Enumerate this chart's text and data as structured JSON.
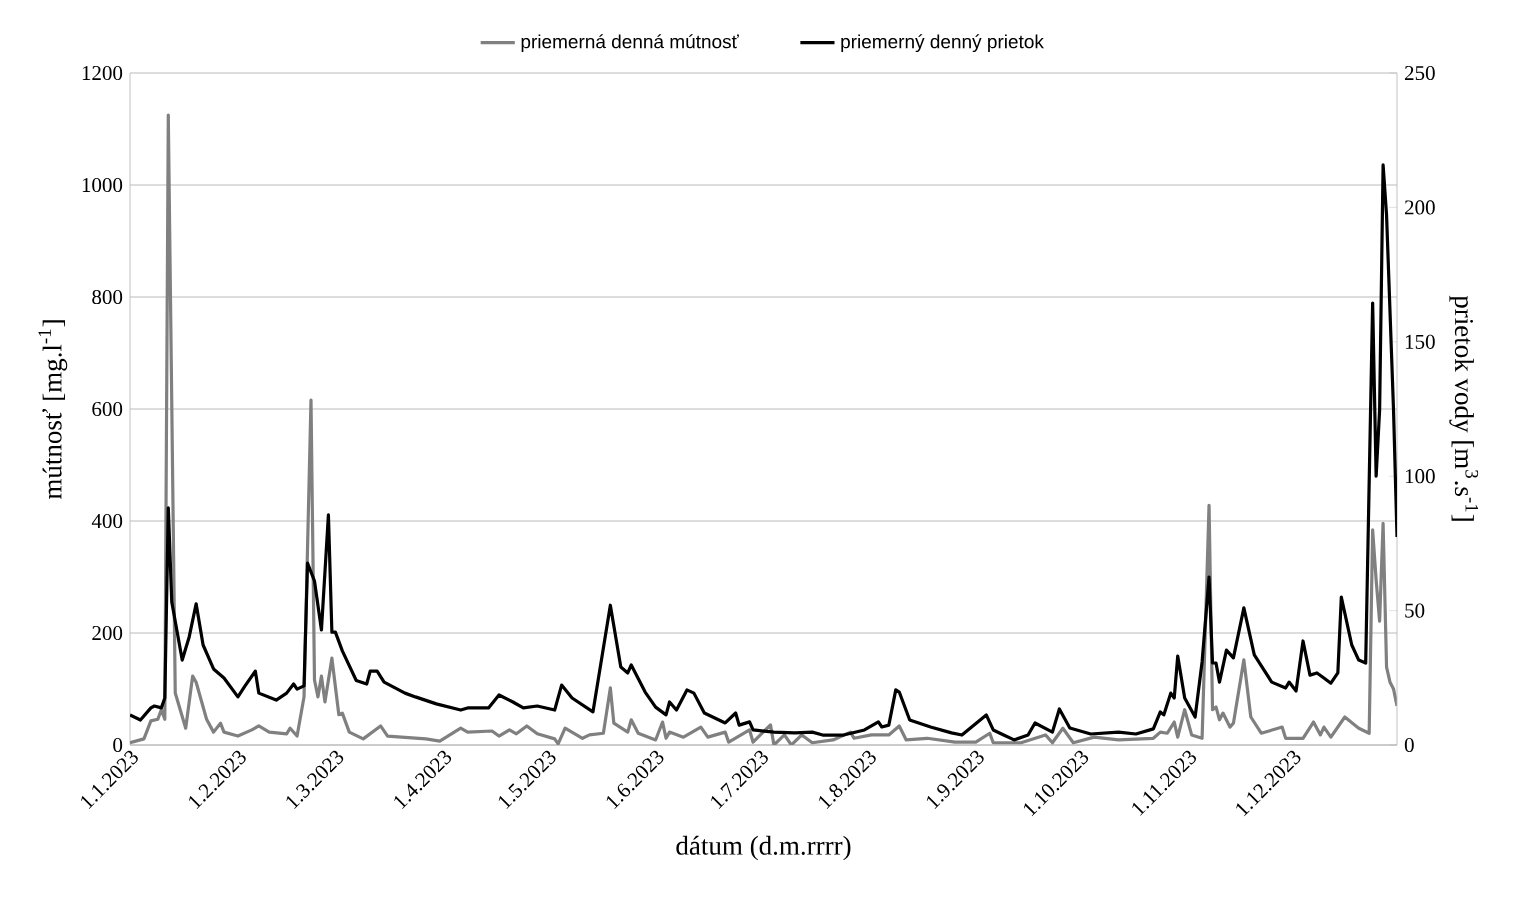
{
  "chart_data": {
    "type": "line",
    "xlabel": "dátum (d.m.rrrr)",
    "ylabel": "mútnosť [mg.l$^{-1}$]",
    "y2label": "prietok vody [m$^{3}$.s$^{-1}$]",
    "xlim": [
      "2023-01-01",
      "2023-12-31"
    ],
    "xticks": [
      {
        "value": "2023-01-01",
        "label": "1.1.2023"
      },
      {
        "value": "2023-02-01",
        "label": "1.2.2023"
      },
      {
        "value": "2023-03-01",
        "label": "1.3.2023"
      },
      {
        "value": "2023-04-01",
        "label": "1.4.2023"
      },
      {
        "value": "2023-05-01",
        "label": "1.5.2023"
      },
      {
        "value": "2023-06-01",
        "label": "1.6.2023"
      },
      {
        "value": "2023-07-01",
        "label": "1.7.2023"
      },
      {
        "value": "2023-08-01",
        "label": "1.8.2023"
      },
      {
        "value": "2023-09-01",
        "label": "1.9.2023"
      },
      {
        "value": "2023-10-01",
        "label": "1.10.2023"
      },
      {
        "value": "2023-11-01",
        "label": "1.11.2023"
      },
      {
        "value": "2023-12-01",
        "label": "1.12.2023"
      }
    ],
    "ylim": [
      0,
      1200
    ],
    "yticks": [
      0,
      200,
      400,
      600,
      800,
      1000,
      1200
    ],
    "y2lim": [
      0,
      250
    ],
    "y2ticks": [
      0,
      50,
      100,
      150,
      200,
      250
    ],
    "grid": "y",
    "legend": "top",
    "line_style": "solid",
    "series": [
      {
        "name": "priemerná denná mútnosť",
        "color": "#808080",
        "x": [
          "2023-01-01",
          "2023-01-05",
          "2023-01-07",
          "2023-01-09",
          "2023-01-10",
          "2023-01-11",
          "2023-01-12",
          "2023-01-14",
          "2023-01-17",
          "2023-01-19",
          "2023-01-20",
          "2023-01-23",
          "2023-01-25",
          "2023-01-27",
          "2023-01-28",
          "2023-02-01",
          "2023-02-05",
          "2023-02-07",
          "2023-02-10",
          "2023-02-15",
          "2023-02-16",
          "2023-02-18",
          "2023-02-20",
          "2023-02-22",
          "2023-02-23",
          "2023-02-24",
          "2023-02-25",
          "2023-02-26",
          "2023-02-28",
          "2023-03-02",
          "2023-03-03",
          "2023-03-05",
          "2023-03-09",
          "2023-03-14",
          "2023-03-16",
          "2023-03-27",
          "2023-03-31",
          "2023-04-06",
          "2023-04-08",
          "2023-04-15",
          "2023-04-17",
          "2023-04-20",
          "2023-04-22",
          "2023-04-25",
          "2023-04-28",
          "2023-05-03",
          "2023-05-04",
          "2023-05-06",
          "2023-05-11",
          "2023-05-13",
          "2023-05-17",
          "2023-05-19",
          "2023-05-20",
          "2023-05-24",
          "2023-05-25",
          "2023-05-27",
          "2023-06-01",
          "2023-06-03",
          "2023-06-04",
          "2023-06-05",
          "2023-06-09",
          "2023-06-14",
          "2023-06-16",
          "2023-06-21",
          "2023-06-22",
          "2023-06-28",
          "2023-06-29",
          "2023-07-04",
          "2023-07-05",
          "2023-07-08",
          "2023-07-10",
          "2023-07-13",
          "2023-07-16",
          "2023-07-22",
          "2023-07-27",
          "2023-07-28",
          "2023-08-02",
          "2023-08-07",
          "2023-08-10",
          "2023-08-12",
          "2023-08-18",
          "2023-08-26",
          "2023-09-01",
          "2023-09-05",
          "2023-09-06",
          "2023-09-14",
          "2023-09-21",
          "2023-09-23",
          "2023-09-26",
          "2023-09-29",
          "2023-10-05",
          "2023-10-12",
          "2023-10-22",
          "2023-10-24",
          "2023-10-26",
          "2023-10-28",
          "2023-10-29",
          "2023-10-31",
          "2023-11-02",
          "2023-11-05",
          "2023-11-07",
          "2023-11-08",
          "2023-11-09",
          "2023-11-10",
          "2023-11-11",
          "2023-11-13",
          "2023-11-14",
          "2023-11-17",
          "2023-11-19",
          "2023-11-22",
          "2023-11-28",
          "2023-11-29",
          "2023-12-04",
          "2023-12-07",
          "2023-12-09",
          "2023-12-10",
          "2023-12-12",
          "2023-12-16",
          "2023-12-20",
          "2023-12-23",
          "2023-12-24",
          "2023-12-25",
          "2023-12-26",
          "2023-12-27",
          "2023-12-28",
          "2023-12-29",
          "2023-12-30",
          "2023-12-31"
        ],
        "values": [
          4,
          11,
          43,
          46,
          63,
          46,
          1125,
          93,
          30,
          123,
          112,
          46,
          23,
          39,
          23,
          16,
          27,
          34,
          23,
          20,
          30,
          16,
          86,
          616,
          116,
          86,
          123,
          77,
          155,
          54,
          57,
          23,
          11,
          34,
          16,
          11,
          7,
          30,
          23,
          25,
          16,
          27,
          20,
          34,
          20,
          11,
          2,
          30,
          12,
          18,
          21,
          102,
          39,
          23,
          45,
          21,
          9,
          41,
          12,
          23,
          14,
          32,
          14,
          23,
          5,
          27,
          5,
          36,
          0,
          18,
          0,
          18,
          4,
          9,
          23,
          12,
          18,
          18,
          34,
          9,
          12,
          5,
          5,
          21,
          4,
          4,
          18,
          4,
          30,
          4,
          14,
          9,
          12,
          23,
          21,
          41,
          14,
          63,
          18,
          12,
          428,
          63,
          68,
          45,
          57,
          32,
          39,
          152,
          50,
          21,
          32,
          12,
          12,
          41,
          18,
          32,
          14,
          50,
          30,
          21,
          384,
          295,
          221,
          396,
          139,
          112,
          100,
          70
        ]
      },
      {
        "name": "priemerný denný prietok",
        "color": "#000000",
        "axis": "y2",
        "x": [
          "2023-01-01",
          "2023-01-04",
          "2023-01-07",
          "2023-01-08",
          "2023-01-10",
          "2023-01-11",
          "2023-01-12",
          "2023-01-13",
          "2023-01-16",
          "2023-01-18",
          "2023-01-20",
          "2023-01-22",
          "2023-01-25",
          "2023-01-28",
          "2023-02-01",
          "2023-02-03",
          "2023-02-06",
          "2023-02-07",
          "2023-02-12",
          "2023-02-15",
          "2023-02-17",
          "2023-02-18",
          "2023-02-20",
          "2023-02-21",
          "2023-02-23",
          "2023-02-25",
          "2023-02-27",
          "2023-02-28",
          "2023-03-01",
          "2023-03-03",
          "2023-03-07",
          "2023-03-10",
          "2023-03-11",
          "2023-03-13",
          "2023-03-15",
          "2023-03-21",
          "2023-03-24",
          "2023-03-30",
          "2023-04-06",
          "2023-04-08",
          "2023-04-14",
          "2023-04-17",
          "2023-04-21",
          "2023-04-24",
          "2023-04-28",
          "2023-05-03",
          "2023-05-05",
          "2023-05-08",
          "2023-05-14",
          "2023-05-19",
          "2023-05-22",
          "2023-05-24",
          "2023-05-25",
          "2023-05-29",
          "2023-06-01",
          "2023-06-04",
          "2023-06-05",
          "2023-06-07",
          "2023-06-10",
          "2023-06-12",
          "2023-06-15",
          "2023-06-21",
          "2023-06-24",
          "2023-06-25",
          "2023-06-28",
          "2023-06-29",
          "2023-07-05",
          "2023-07-11",
          "2023-07-16",
          "2023-07-19",
          "2023-07-25",
          "2023-07-31",
          "2023-08-04",
          "2023-08-05",
          "2023-08-07",
          "2023-08-09",
          "2023-08-10",
          "2023-08-13",
          "2023-08-19",
          "2023-08-25",
          "2023-08-28",
          "2023-09-04",
          "2023-09-06",
          "2023-09-09",
          "2023-09-12",
          "2023-09-16",
          "2023-09-18",
          "2023-09-23",
          "2023-09-25",
          "2023-09-28",
          "2023-10-04",
          "2023-10-12",
          "2023-10-17",
          "2023-10-22",
          "2023-10-24",
          "2023-10-25",
          "2023-10-27",
          "2023-10-28",
          "2023-10-29",
          "2023-10-31",
          "2023-11-03",
          "2023-11-05",
          "2023-11-07",
          "2023-11-08",
          "2023-11-09",
          "2023-11-10",
          "2023-11-12",
          "2023-11-14",
          "2023-11-17",
          "2023-11-20",
          "2023-11-25",
          "2023-11-29",
          "2023-11-30",
          "2023-12-02",
          "2023-12-04",
          "2023-12-06",
          "2023-12-08",
          "2023-12-10",
          "2023-12-12",
          "2023-12-14",
          "2023-12-15",
          "2023-12-18",
          "2023-12-20",
          "2023-12-22",
          "2023-12-24",
          "2023-12-25",
          "2023-12-26",
          "2023-12-27",
          "2023-12-28",
          "2023-12-30",
          "2023-12-31"
        ],
        "values": [
          11.2,
          9.3,
          13.8,
          14.5,
          13.8,
          17.5,
          88.2,
          53.2,
          31.6,
          40.2,
          52.5,
          37.2,
          28.3,
          24.9,
          17.9,
          21.9,
          27.5,
          19.3,
          16.7,
          19.3,
          22.7,
          20.8,
          22,
          67.7,
          61,
          42.8,
          85.6,
          42,
          42,
          35,
          24,
          22.7,
          27.5,
          27.5,
          23.4,
          19.3,
          17.9,
          15.3,
          13,
          13.8,
          13.8,
          18.6,
          16,
          13.8,
          14.5,
          13,
          22.3,
          17.5,
          12.3,
          52,
          29,
          26.8,
          29.8,
          19.7,
          14.1,
          11.2,
          16,
          13,
          20.5,
          19.3,
          11.9,
          8.2,
          11.9,
          7.4,
          8.6,
          5.6,
          4.8,
          4.5,
          4.8,
          3.7,
          3.7,
          5.6,
          8.6,
          6.7,
          7.4,
          20.5,
          19.7,
          9.3,
          6.7,
          4.5,
          3.7,
          11.2,
          5.6,
          3.7,
          1.9,
          3.7,
          8.2,
          4.8,
          13.4,
          6.3,
          4.1,
          4.8,
          4.1,
          6,
          12.3,
          11.2,
          19.3,
          17.5,
          33.1,
          17.5,
          10.4,
          30.9,
          62.5,
          30.5,
          30.5,
          23.4,
          35.3,
          32.4,
          51,
          33.5,
          23.4,
          21.2,
          23.4,
          20.1,
          38.7,
          26,
          26.8,
          24.9,
          23,
          26.8,
          55,
          37.2,
          31.6,
          30.5,
          164.4,
          100,
          124.6,
          215.8,
          197,
          124.6,
          77.4
        ]
      }
    ]
  }
}
